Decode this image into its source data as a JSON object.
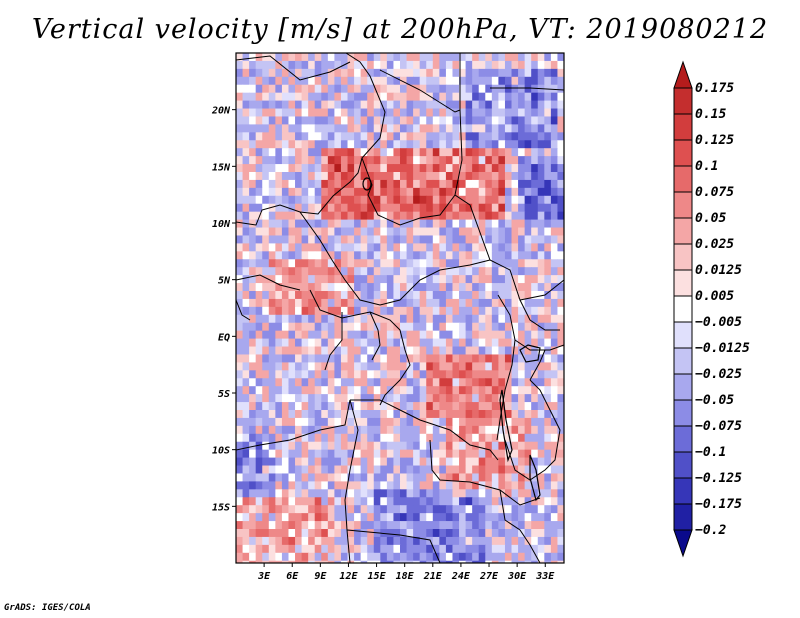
{
  "title": "Vertical velocity [m/s] at 200hPa, VT: 2019080212",
  "credit": "GrADS: IGES/COLA",
  "chart_data": {
    "type": "heatmap",
    "title": "Vertical velocity [m/s] at 200hPa, VT: 2019080212",
    "variable": "Vertical velocity",
    "units": "m/s",
    "level": "200hPa",
    "valid_time": "2019080212",
    "lon_range": [
      0.0,
      35.0
    ],
    "lat_range": [
      -20.0,
      25.0
    ],
    "x_ticks": [
      {
        "value": 3,
        "label": "3E"
      },
      {
        "value": 6,
        "label": "6E"
      },
      {
        "value": 9,
        "label": "9E"
      },
      {
        "value": 12,
        "label": "12E"
      },
      {
        "value": 15,
        "label": "15E"
      },
      {
        "value": 18,
        "label": "18E"
      },
      {
        "value": 21,
        "label": "21E"
      },
      {
        "value": 24,
        "label": "24E"
      },
      {
        "value": 27,
        "label": "27E"
      },
      {
        "value": 30,
        "label": "30E"
      },
      {
        "value": 33,
        "label": "33E"
      }
    ],
    "y_ticks": [
      {
        "value": 20,
        "label": "20N"
      },
      {
        "value": 15,
        "label": "15N"
      },
      {
        "value": 10,
        "label": "10N"
      },
      {
        "value": 5,
        "label": "5N"
      },
      {
        "value": 0,
        "label": "EQ"
      },
      {
        "value": -5,
        "label": "5S"
      },
      {
        "value": -10,
        "label": "10S"
      },
      {
        "value": -15,
        "label": "15S"
      }
    ],
    "colorbar": {
      "levels": [
        "0.175",
        "0.15",
        "0.125",
        "0.1",
        "0.075",
        "0.05",
        "0.025",
        "0.0125",
        "0.005",
        "−0.005",
        "−0.0125",
        "−0.025",
        "−0.05",
        "−0.075",
        "−0.1",
        "−0.125",
        "−0.175",
        "−0.2"
      ],
      "colors": [
        "#b41c1c",
        "#c42e2e",
        "#d23d3d",
        "#de5050",
        "#e66a6a",
        "#ee8888",
        "#f4a6a6",
        "#f8c4c4",
        "#fce0e0",
        "#ffffff",
        "#e0e0fc",
        "#c4c4f4",
        "#a8a8ee",
        "#8c8ce6",
        "#6c6cd8",
        "#5050c8",
        "#3636b8",
        "#2020a4",
        "#0a0a8c"
      ]
    },
    "features": {
      "positive_regions": [
        {
          "lon": [
            9,
            28
          ],
          "lat": [
            11,
            17
          ],
          "intensity": 0.1
        },
        {
          "lon": [
            3,
            12
          ],
          "lat": [
            2,
            7
          ],
          "intensity": 0.05
        },
        {
          "lon": [
            20,
            29
          ],
          "lat": [
            -7,
            -1
          ],
          "intensity": 0.075
        },
        {
          "lon": [
            0,
            10
          ],
          "lat": [
            -20,
            -14
          ],
          "intensity": 0.05
        },
        {
          "lon": [
            22,
            31
          ],
          "lat": [
            -14,
            -7
          ],
          "intensity": 0.05
        }
      ],
      "negative_regions": [
        {
          "lon": [
            14,
            27
          ],
          "lat": [
            -20,
            -13
          ],
          "intensity": -0.05
        },
        {
          "lon": [
            24,
            34
          ],
          "lat": [
            17,
            24
          ],
          "intensity": -0.05
        },
        {
          "lon": [
            30,
            35
          ],
          "lat": [
            11,
            16
          ],
          "intensity": -0.075
        },
        {
          "lon": [
            0,
            4
          ],
          "lat": [
            -14,
            -8
          ],
          "intensity": -0.05
        }
      ]
    }
  }
}
